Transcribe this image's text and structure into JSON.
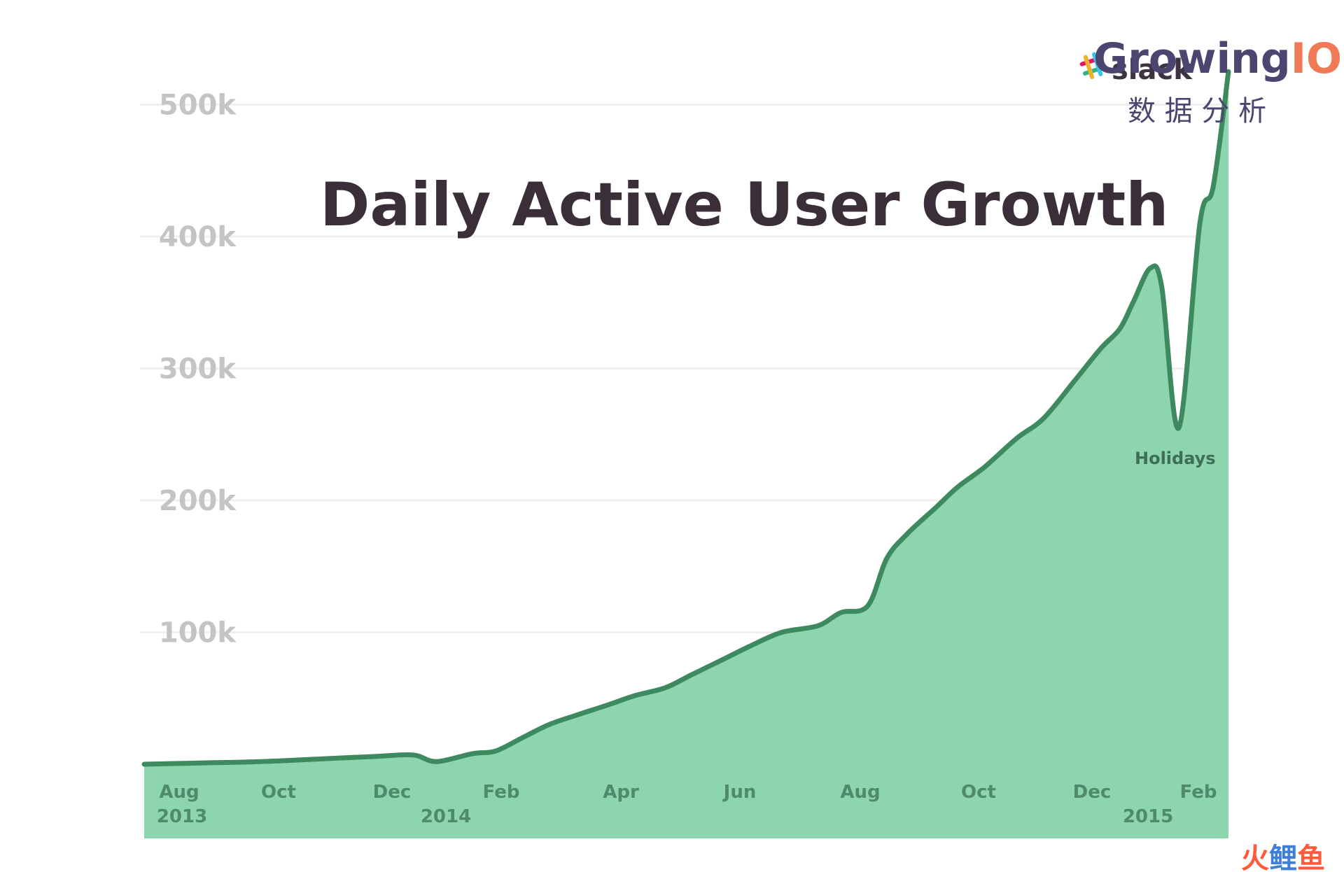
{
  "chart_data": {
    "type": "area",
    "title": "Daily Active User Growth",
    "annotation": "Holidays",
    "y_ticks": [
      "500k",
      "400k",
      "300k",
      "200k",
      "100k"
    ],
    "y_tick_values": [
      500000,
      400000,
      300000,
      200000,
      100000
    ],
    "ylim": [
      0,
      520000
    ],
    "x_ticks": [
      {
        "month": "Aug",
        "year": "2013"
      },
      {
        "month": "Oct",
        "year": ""
      },
      {
        "month": "Dec",
        "year": ""
      },
      {
        "month": "Feb",
        "year": "2014"
      },
      {
        "month": "Apr",
        "year": ""
      },
      {
        "month": "Jun",
        "year": ""
      },
      {
        "month": "Aug",
        "year": ""
      },
      {
        "month": "Oct",
        "year": ""
      },
      {
        "month": "Dec",
        "year": ""
      },
      {
        "month": "Feb",
        "year": "2015"
      }
    ],
    "series": [
      {
        "values_x": [
          "2013-08-01",
          "2013-09-01",
          "2013-10-01",
          "2013-11-01",
          "2013-12-01",
          "2013-12-20",
          "2014-01-01",
          "2014-01-20",
          "2014-02-01",
          "2014-02-15",
          "2014-03-01",
          "2014-03-15",
          "2014-04-01",
          "2014-04-15",
          "2014-05-01",
          "2014-05-15",
          "2014-06-01",
          "2014-06-15",
          "2014-07-01",
          "2014-07-20",
          "2014-08-01",
          "2014-08-15",
          "2014-08-25",
          "2014-09-05",
          "2014-09-20",
          "2014-10-01",
          "2014-10-15",
          "2014-11-01",
          "2014-11-15",
          "2014-12-01",
          "2014-12-15",
          "2014-12-25",
          "2015-01-01",
          "2015-01-10",
          "2015-01-16",
          "2015-01-25",
          "2015-02-05",
          "2015-02-12",
          "2015-02-20"
        ],
        "values_y": [
          0,
          1000,
          2000,
          4000,
          6000,
          7000,
          2000,
          8000,
          10000,
          20000,
          30000,
          37000,
          45000,
          52000,
          58000,
          68000,
          80000,
          90000,
          100000,
          105000,
          115000,
          120000,
          156000,
          175000,
          195000,
          210000,
          225000,
          247000,
          262000,
          290000,
          315000,
          330000,
          350000,
          376000,
          362000,
          255000,
          410000,
          438000,
          525000
        ]
      }
    ],
    "colors": {
      "fill": "#8dd5ad",
      "line": "#3d8a5e",
      "grid": "#f0f0f0"
    }
  },
  "watermark": {
    "growing": "Growing",
    "io": "IO",
    "subtitle": "数 据 分 析",
    "slack": "slack",
    "corner_1": "火",
    "corner_2": "鲤",
    "corner_3": "鱼"
  }
}
